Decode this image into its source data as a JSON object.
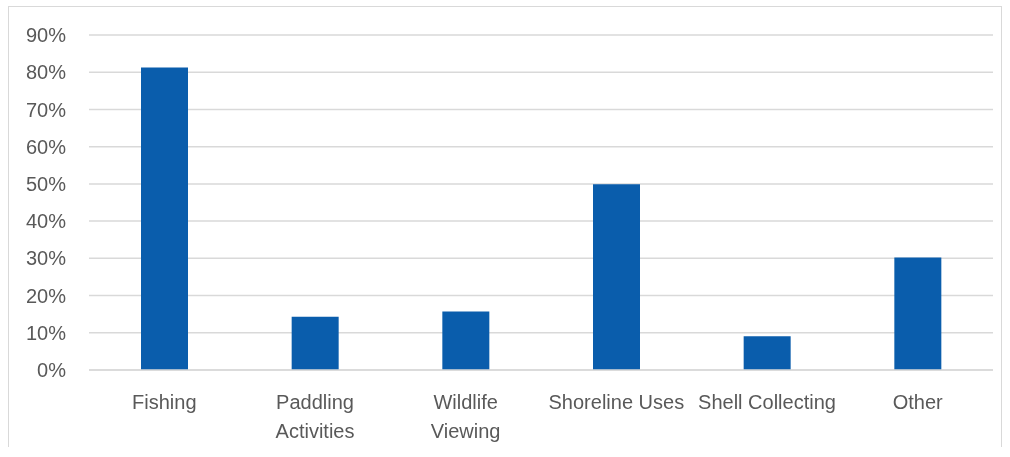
{
  "chart_data": {
    "type": "bar",
    "categories": [
      "Fishing",
      "Paddling Activities",
      "Wildlife Viewing",
      "Shoreline Uses",
      "Shell Collecting",
      "Other"
    ],
    "values": [
      81.3,
      14.3,
      15.7,
      49.9,
      9.1,
      30.2
    ],
    "color": "#0a5dac",
    "ylim": [
      0,
      90
    ],
    "yticks": [
      {
        "value": 0,
        "label": "0%"
      },
      {
        "value": 10,
        "label": "10%"
      },
      {
        "value": 20,
        "label": "20%"
      },
      {
        "value": 30,
        "label": "30%"
      },
      {
        "value": 40,
        "label": "40%"
      },
      {
        "value": 50,
        "label": "50%"
      },
      {
        "value": 60,
        "label": "60%"
      },
      {
        "value": 70,
        "label": "70%"
      },
      {
        "value": 80,
        "label": "80%"
      },
      {
        "value": 90,
        "label": "90%"
      }
    ],
    "grid": "y"
  }
}
